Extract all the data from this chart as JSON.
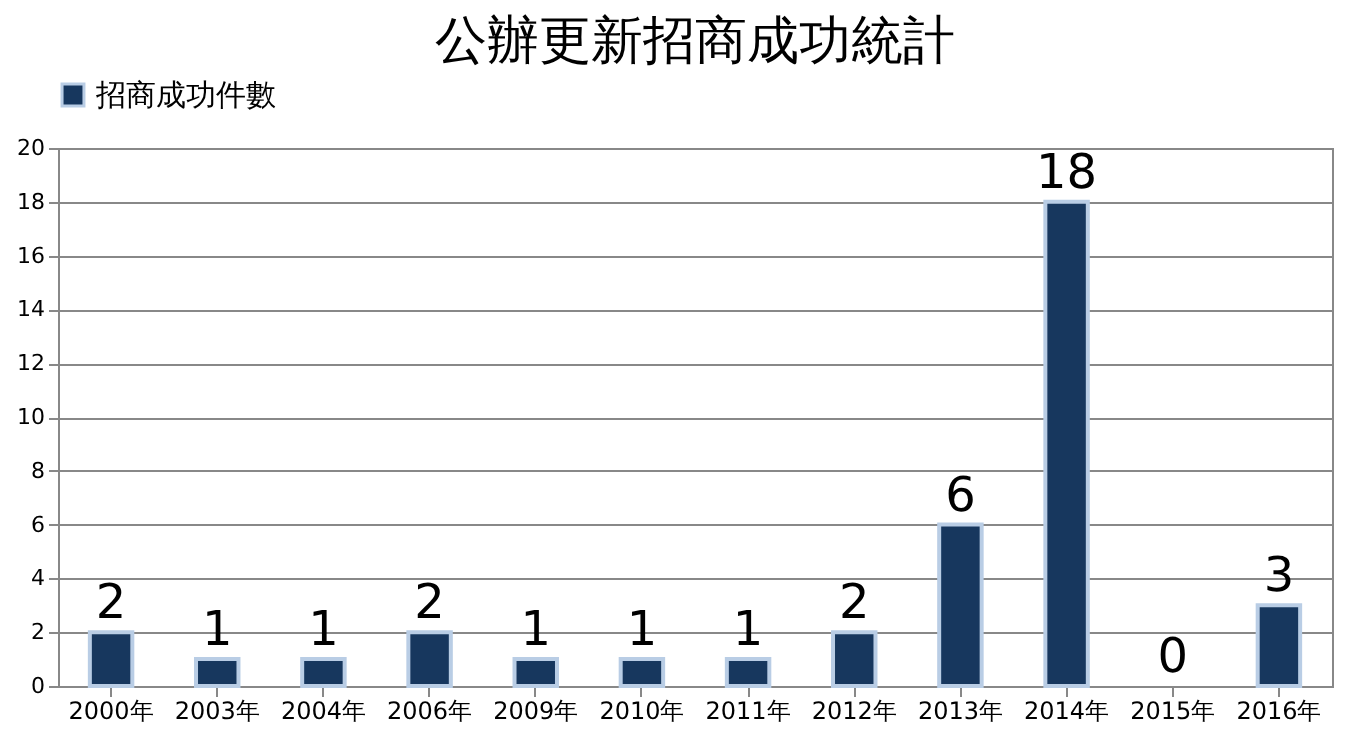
{
  "chart_data": {
    "type": "bar",
    "title": "公辦更新招商成功統計",
    "categories": [
      "2000年",
      "2003年",
      "2004年",
      "2006年",
      "2009年",
      "2010年",
      "2011年",
      "2012年",
      "2013年",
      "2014年",
      "2015年",
      "2016年"
    ],
    "series": [
      {
        "name": "招商成功件數",
        "color": "#17375e",
        "values": [
          2,
          1,
          1,
          2,
          1,
          1,
          1,
          2,
          6,
          18,
          0,
          3
        ]
      }
    ],
    "ylim": [
      0,
      20
    ],
    "yticks": [
      0,
      2,
      4,
      6,
      8,
      10,
      12,
      14,
      16,
      18,
      20
    ],
    "grid": "y",
    "legend": "top",
    "data_labels": true
  }
}
